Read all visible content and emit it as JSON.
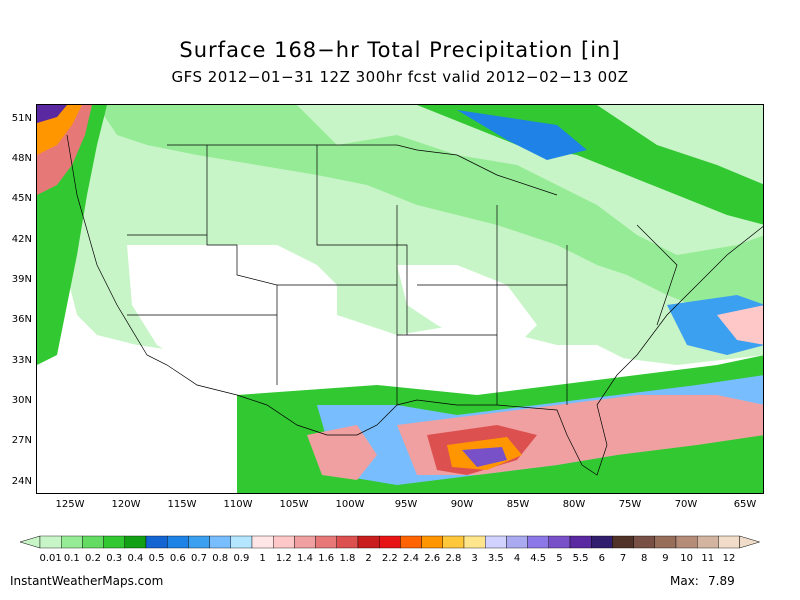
{
  "title": "Surface 168−hr Total Precipitation [in]",
  "subtitle": "GFS 2012−01−31 12Z 300hr fcst valid 2012−02−13 00Z",
  "map": {
    "lat_labels": [
      "51N",
      "48N",
      "45N",
      "42N",
      "39N",
      "36N",
      "33N",
      "30N",
      "27N",
      "24N"
    ],
    "lon_labels": [
      "125W",
      "120W",
      "115W",
      "110W",
      "105W",
      "100W",
      "95W",
      "90W",
      "85W",
      "80W",
      "75W",
      "70W",
      "65W"
    ]
  },
  "colorbar": {
    "labels": [
      "0.01",
      "0.1",
      "0.2",
      "0.3",
      "0.4",
      "0.5",
      "0.6",
      "0.7",
      "0.8",
      "0.9",
      "1",
      "1.2",
      "1.4",
      "1.6",
      "1.8",
      "2",
      "2.2",
      "2.4",
      "2.6",
      "2.8",
      "3",
      "3.5",
      "4",
      "4.5",
      "5",
      "5.5",
      "6",
      "7",
      "8",
      "9",
      "10",
      "11",
      "12"
    ],
    "colors": [
      "#c8f5c8",
      "#96eb96",
      "#64dc64",
      "#32c832",
      "#14a014",
      "#1464d2",
      "#1e82e6",
      "#3ca0f0",
      "#78beff",
      "#b4e6ff",
      "#ffe6e6",
      "#ffc8c8",
      "#f0a0a0",
      "#e67878",
      "#dc5050",
      "#c81e1e",
      "#e61414",
      "#ff6400",
      "#ff9600",
      "#ffc83c",
      "#ffe68c",
      "#d2d2ff",
      "#aaaaf0",
      "#8c78e6",
      "#7850c8",
      "#5a28a0",
      "#321e6e",
      "#503228",
      "#785046",
      "#966e5a",
      "#b48c78",
      "#d2b4a0",
      "#f0dcc8"
    ]
  },
  "footer": {
    "credit": "InstantWeatherMaps.com",
    "max_label": "Max:",
    "max_value": "7.89"
  }
}
